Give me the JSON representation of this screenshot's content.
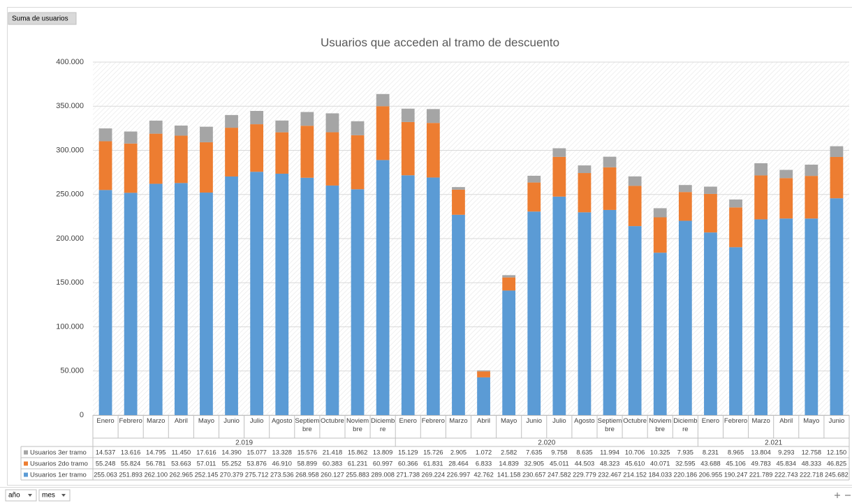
{
  "ui": {
    "field_button": "Suma de usuarios",
    "filters": [
      "año",
      "mes"
    ]
  },
  "chart_data": {
    "type": "stacked_bar",
    "title": "Usuarios que acceden al tramo de descuento",
    "groups": [
      {
        "label": "2.019",
        "categories": [
          "Enero",
          "Febrero",
          "Marzo",
          "Abril",
          "Mayo",
          "Junio",
          "Julio",
          "Agosto",
          "Septiembre",
          "Octubre",
          "Noviembre",
          "Diciembre"
        ]
      },
      {
        "label": "2.020",
        "categories": [
          "Enero",
          "Febrero",
          "Marzo",
          "Abril",
          "Mayo",
          "Junio",
          "Julio",
          "Agosto",
          "Septiembre",
          "Octubre",
          "Noviembre",
          "Diciembre"
        ]
      },
      {
        "label": "2.021",
        "categories": [
          "Enero",
          "Febrero",
          "Marzo",
          "Abril",
          "Mayo",
          "Junio"
        ]
      }
    ],
    "series": [
      {
        "name": "Usuarios 1er tramo",
        "color": "#5b9bd5",
        "values": [
          255063,
          251893,
          262100,
          262965,
          252145,
          270379,
          275712,
          273536,
          268958,
          260127,
          255883,
          289008,
          271738,
          269224,
          226997,
          42762,
          141158,
          230657,
          247582,
          229779,
          232467,
          214152,
          184033,
          220186,
          206955,
          190247,
          221789,
          222743,
          222718,
          245682
        ],
        "value_labels": [
          "255.063",
          "251.893",
          "262.100",
          "262.965",
          "252.145",
          "270.379",
          "275.712",
          "273.536",
          "268.958",
          "260.127",
          "255.883",
          "289.008",
          "271.738",
          "269.224",
          "226.997",
          "42.762",
          "141.158",
          "230.657",
          "247.582",
          "229.779",
          "232.467",
          "214.152",
          "184.033",
          "220.186",
          "206.955",
          "190.247",
          "221.789",
          "222.743",
          "222.718",
          "245.682"
        ]
      },
      {
        "name": "Usuarios 2do tramo",
        "color": "#ed7d31",
        "values": [
          55248,
          55824,
          56781,
          53663,
          57011,
          55252,
          53876,
          46910,
          58899,
          60383,
          61231,
          60997,
          60366,
          61831,
          28464,
          6833,
          14839,
          32905,
          45011,
          44503,
          48323,
          45610,
          40071,
          32595,
          43688,
          45106,
          49783,
          45834,
          48333,
          46825
        ],
        "value_labels": [
          "55.248",
          "55.824",
          "56.781",
          "53.663",
          "57.011",
          "55.252",
          "53.876",
          "46.910",
          "58.899",
          "60.383",
          "61.231",
          "60.997",
          "60.366",
          "61.831",
          "28.464",
          "6.833",
          "14.839",
          "32.905",
          "45.011",
          "44.503",
          "48.323",
          "45.610",
          "40.071",
          "32.595",
          "43.688",
          "45.106",
          "49.783",
          "45.834",
          "48.333",
          "46.825"
        ]
      },
      {
        "name": "Usuarios 3er tramo",
        "color": "#a5a5a5",
        "values": [
          14537,
          13616,
          14795,
          11450,
          17616,
          14390,
          15077,
          13328,
          15576,
          21418,
          15862,
          13809,
          15129,
          15726,
          2905,
          1072,
          2582,
          7635,
          9758,
          8635,
          11994,
          10706,
          10325,
          7935,
          8231,
          8965,
          13804,
          9293,
          12758,
          12150
        ],
        "value_labels": [
          "14.537",
          "13.616",
          "14.795",
          "11.450",
          "17.616",
          "14.390",
          "15.077",
          "13.328",
          "15.576",
          "21.418",
          "15.862",
          "13.809",
          "15.129",
          "15.726",
          "2.905",
          "1.072",
          "2.582",
          "7.635",
          "9.758",
          "8.635",
          "11.994",
          "10.706",
          "10.325",
          "7.935",
          "8.231",
          "8.965",
          "13.804",
          "9.293",
          "12.758",
          "12.150"
        ]
      }
    ],
    "ylim": [
      0,
      400000
    ],
    "yticks": [
      0,
      {
        "value": 50000,
        "label": "50.000"
      },
      {
        "value": 100000,
        "label": "100.000"
      },
      {
        "value": 150000,
        "label": "150.000"
      },
      {
        "value": 200000,
        "label": "200.000"
      },
      {
        "value": 250000,
        "label": "250.000"
      },
      {
        "value": 300000,
        "label": "300.000"
      },
      {
        "value": 350000,
        "label": "350.000"
      },
      {
        "value": 400000,
        "label": "400.000"
      }
    ],
    "grid": true
  }
}
